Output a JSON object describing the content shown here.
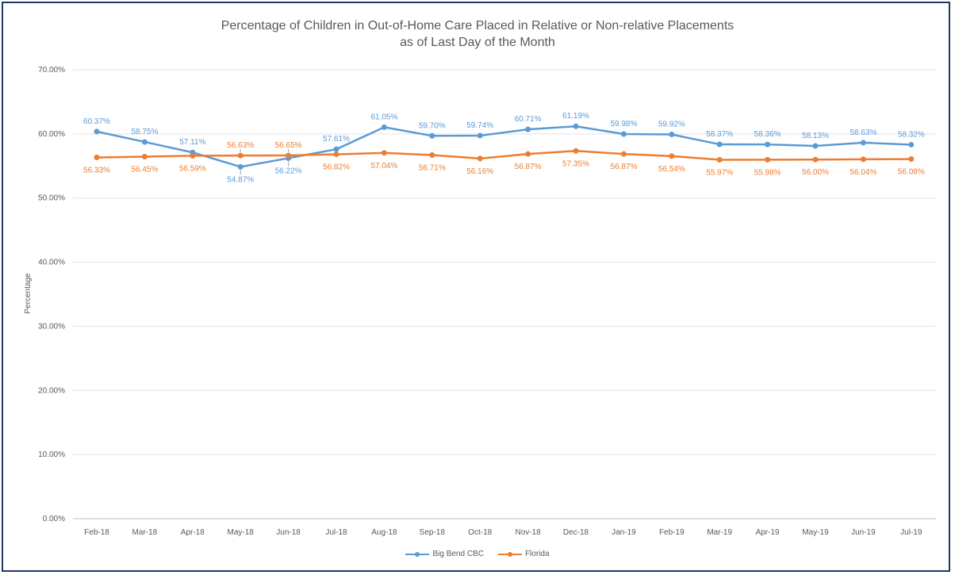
{
  "chart_data": {
    "type": "line",
    "title": "Percentage of Children in Out-of-Home Care Placed in Relative or Non-relative Placements",
    "subtitle": "as of Last Day of the Month",
    "ylabel": "Percentage",
    "xlabel": "",
    "ylim": [
      0,
      70
    ],
    "yticks": [
      "0.00%",
      "10.00%",
      "20.00%",
      "30.00%",
      "40.00%",
      "50.00%",
      "60.00%",
      "70.00%"
    ],
    "grid": true,
    "legend_position": "bottom",
    "categories": [
      "Feb-18",
      "Mar-18",
      "Apr-18",
      "May-18",
      "Jun-18",
      "Jul-18",
      "Aug-18",
      "Sep-18",
      "Oct-18",
      "Nov-18",
      "Dec-18",
      "Jan-19",
      "Feb-19",
      "Mar-19",
      "Apr-19",
      "May-19",
      "Jun-19",
      "Jul-19"
    ],
    "series": [
      {
        "name": "Big Bend CBC",
        "color": "#5b9bd5",
        "values": [
          60.37,
          58.75,
          57.11,
          54.87,
          56.22,
          57.61,
          61.05,
          59.7,
          59.74,
          60.71,
          61.19,
          59.98,
          59.92,
          58.37,
          58.36,
          58.13,
          58.63,
          58.32
        ],
        "labels": [
          "60.37%",
          "58.75%",
          "57.11%",
          "54.87%",
          "56.22%",
          "57.61%",
          "61.05%",
          "59.70%",
          "59.74%",
          "60.71%",
          "61.19%",
          "59.98%",
          "59.92%",
          "58.37%",
          "58.36%",
          "58.13%",
          "58.63%",
          "58.32%"
        ],
        "label_side": [
          "above",
          "above",
          "above",
          "below",
          "below",
          "above",
          "above",
          "above",
          "above",
          "above",
          "above",
          "above",
          "above",
          "above",
          "above",
          "above",
          "above",
          "above"
        ]
      },
      {
        "name": "Florida",
        "color": "#ed7d31",
        "values": [
          56.33,
          56.45,
          56.59,
          56.63,
          56.65,
          56.82,
          57.04,
          56.71,
          56.16,
          56.87,
          57.35,
          56.87,
          56.54,
          55.97,
          55.98,
          56.0,
          56.04,
          56.08
        ],
        "labels": [
          "56.33%",
          "56.45%",
          "56.59%",
          "56.63%",
          "56.65%",
          "56.82%",
          "57.04%",
          "56.71%",
          "56.16%",
          "56.87%",
          "57.35%",
          "56.87%",
          "56.54%",
          "55.97%",
          "55.98%",
          "56.00%",
          "56.04%",
          "56.08%"
        ],
        "label_side": [
          "below",
          "below",
          "below",
          "above",
          "above",
          "below",
          "below",
          "below",
          "below",
          "below",
          "below",
          "below",
          "below",
          "below",
          "below",
          "below",
          "below",
          "below"
        ]
      }
    ]
  }
}
